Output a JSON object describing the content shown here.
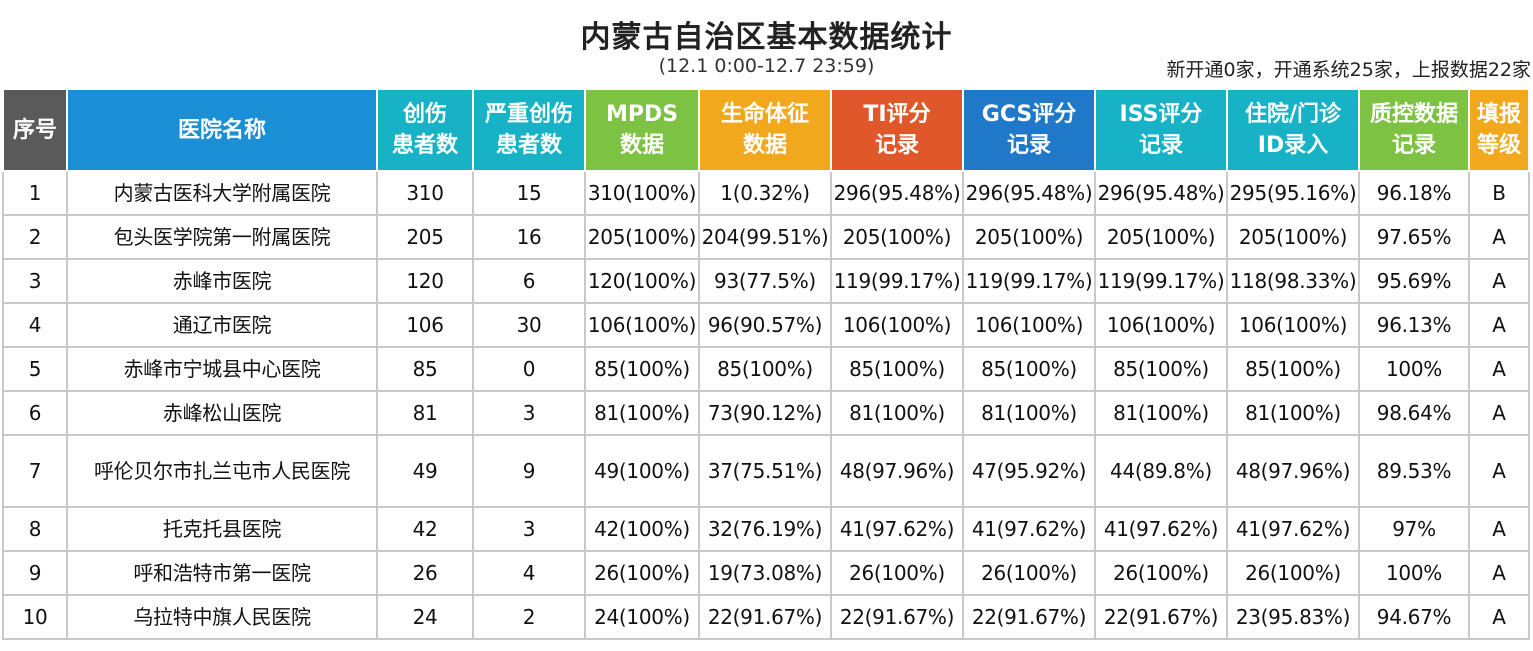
{
  "title": "内蒙古自治区基本数据统计",
  "period": "(12.1 0:00-12.7 23:59)",
  "summary": "新开通0家，开通系统25家，上报数据22家",
  "columns": [
    {
      "line1": "序号",
      "line2": ""
    },
    {
      "line1": "医院名称",
      "line2": ""
    },
    {
      "line1": "创伤",
      "line2": "患者数"
    },
    {
      "line1": "严重创伤",
      "line2": "患者数"
    },
    {
      "line1": "MPDS",
      "line2": "数据"
    },
    {
      "line1": "生命体征",
      "line2": "数据"
    },
    {
      "line1": "TI评分",
      "line2": "记录"
    },
    {
      "line1": "GCS评分",
      "line2": "记录"
    },
    {
      "line1": "ISS评分",
      "line2": "记录"
    },
    {
      "line1": "住院/门诊",
      "line2": "ID录入"
    },
    {
      "line1": "质控数据",
      "line2": "记录"
    },
    {
      "line1": "填报",
      "line2": "等级"
    }
  ],
  "rows": [
    [
      "1",
      "内蒙古医科大学附属医院",
      "310",
      "15",
      "310(100%)",
      "1(0.32%)",
      "296(95.48%)",
      "296(95.48%)",
      "296(95.48%)",
      "295(95.16%)",
      "96.18%",
      "B"
    ],
    [
      "2",
      "包头医学院第一附属医院",
      "205",
      "16",
      "205(100%)",
      "204(99.51%)",
      "205(100%)",
      "205(100%)",
      "205(100%)",
      "205(100%)",
      "97.65%",
      "A"
    ],
    [
      "3",
      "赤峰市医院",
      "120",
      "6",
      "120(100%)",
      "93(77.5%)",
      "119(99.17%)",
      "119(99.17%)",
      "119(99.17%)",
      "118(98.33%)",
      "95.69%",
      "A"
    ],
    [
      "4",
      "通辽市医院",
      "106",
      "30",
      "106(100%)",
      "96(90.57%)",
      "106(100%)",
      "106(100%)",
      "106(100%)",
      "106(100%)",
      "96.13%",
      "A"
    ],
    [
      "5",
      "赤峰市宁城县中心医院",
      "85",
      "0",
      "85(100%)",
      "85(100%)",
      "85(100%)",
      "85(100%)",
      "85(100%)",
      "85(100%)",
      "100%",
      "A"
    ],
    [
      "6",
      "赤峰松山医院",
      "81",
      "3",
      "81(100%)",
      "73(90.12%)",
      "81(100%)",
      "81(100%)",
      "81(100%)",
      "81(100%)",
      "98.64%",
      "A"
    ],
    [
      "7",
      "呼伦贝尔市扎兰屯市人民医院",
      "49",
      "9",
      "49(100%)",
      "37(75.51%)",
      "48(97.96%)",
      "47(95.92%)",
      "44(89.8%)",
      "48(97.96%)",
      "89.53%",
      "A"
    ],
    [
      "8",
      "托克托县医院",
      "42",
      "3",
      "42(100%)",
      "32(76.19%)",
      "41(97.62%)",
      "41(97.62%)",
      "41(97.62%)",
      "41(97.62%)",
      "97%",
      "A"
    ],
    [
      "9",
      "呼和浩特市第一医院",
      "26",
      "4",
      "26(100%)",
      "19(73.08%)",
      "26(100%)",
      "26(100%)",
      "26(100%)",
      "26(100%)",
      "100%",
      "A"
    ],
    [
      "10",
      "乌拉特中旗人民医院",
      "24",
      "2",
      "24(100%)",
      "22(91.67%)",
      "22(91.67%)",
      "22(91.67%)",
      "22(91.67%)",
      "23(95.83%)",
      "94.67%",
      "A"
    ]
  ]
}
